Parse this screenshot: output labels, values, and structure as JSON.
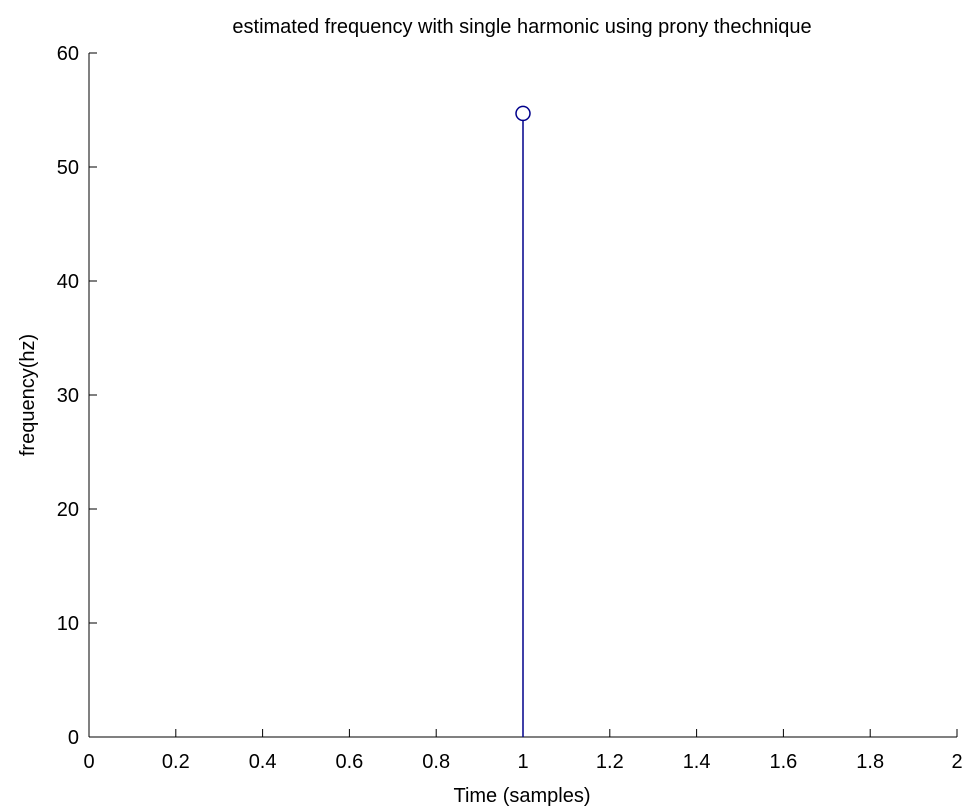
{
  "chart_data": {
    "type": "stem",
    "title": "estimated frequency with single harmonic using prony thechnique",
    "xlabel": "Time (samples)",
    "ylabel": "frequency(hz)",
    "xlim": [
      0,
      2
    ],
    "ylim": [
      0,
      60
    ],
    "x_ticks": [
      "0",
      "0.2",
      "0.4",
      "0.6",
      "0.8",
      "1",
      "1.2",
      "1.4",
      "1.6",
      "1.8",
      "2"
    ],
    "y_ticks": [
      "0",
      "10",
      "20",
      "30",
      "40",
      "50",
      "60"
    ],
    "grid": false,
    "series": [
      {
        "x": [
          1
        ],
        "y": [
          54.7
        ],
        "color": "#00008B",
        "marker": "circle"
      }
    ]
  }
}
